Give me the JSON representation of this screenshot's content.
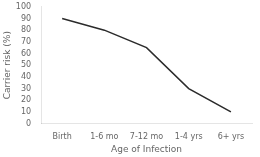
{
  "chart_data": {
    "type": "line",
    "categories": [
      "Birth",
      "1-6 mo",
      "7-12 mo",
      "1-4 yrs",
      "6+ yrs"
    ],
    "values": [
      90,
      80,
      65,
      30,
      10
    ],
    "color": "#2b2b2b",
    "xlabel": "Age of Infection",
    "ylabel": "Carrier risk (%)",
    "ylim": [
      0,
      100
    ],
    "yticks": [
      0,
      10,
      20,
      30,
      40,
      50,
      60,
      70,
      80,
      90,
      100
    ],
    "grid": false
  }
}
